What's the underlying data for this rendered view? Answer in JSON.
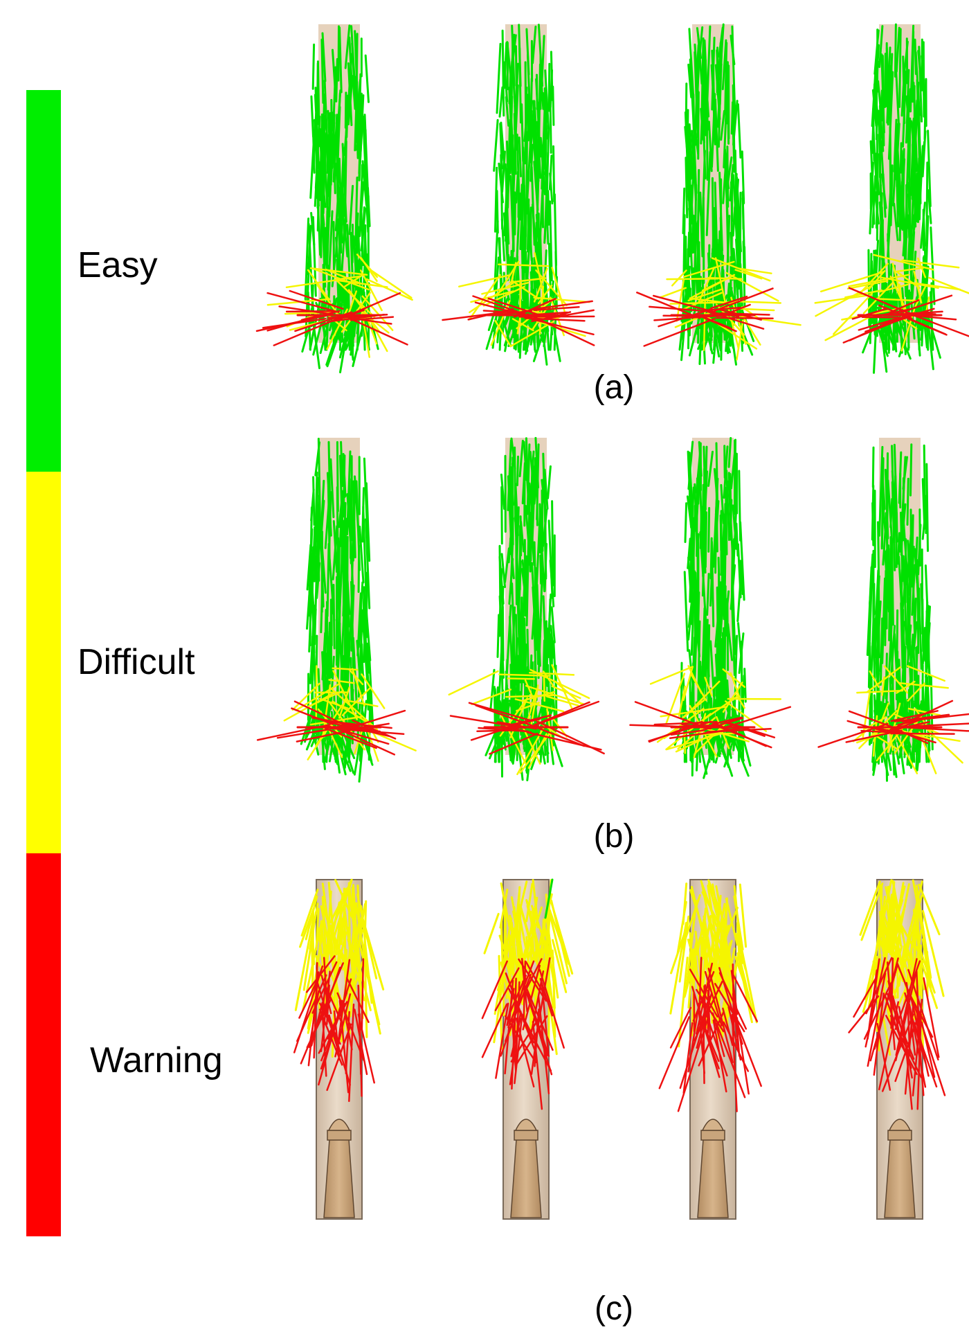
{
  "scale": {
    "levels": [
      {
        "label": "Easy",
        "color": "#00ee00"
      },
      {
        "label": "Difficult",
        "color": "#ffff00"
      },
      {
        "label": "Warning",
        "color": "#ff0000"
      }
    ]
  },
  "panels": [
    {
      "caption": "(a)",
      "dominant": "green",
      "view_count": 4
    },
    {
      "caption": "(b)",
      "dominant": "green",
      "view_count": 4
    },
    {
      "caption": "(c)",
      "dominant": "yellow-red",
      "view_count": 4
    }
  ],
  "colors": {
    "green": "#00e000",
    "yellow": "#f5f500",
    "red": "#ee1111",
    "tube": "#e6d2bc",
    "tube_edge": "#7a6a5a",
    "cone": "#c9a57c"
  }
}
